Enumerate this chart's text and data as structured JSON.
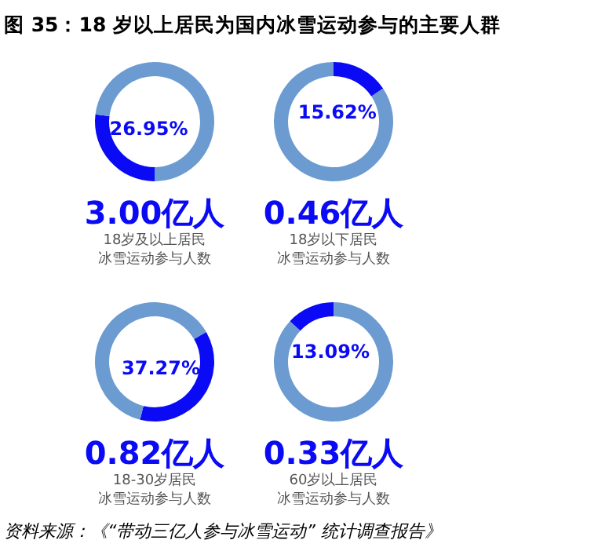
{
  "chart_data": [
    {
      "type": "donut",
      "title": "图 35：18 岁以上居民为国内冰雪运动参与的主要人群",
      "categories": [
        null,
        null
      ],
      "values": [
        26.95,
        73.05
      ],
      "colors": [
        "#0a0af5",
        "#6b9bd1"
      ],
      "value_labels": [
        "26.95%",
        null
      ],
      "subtitle": "3.00亿人",
      "annotations": [
        "18岁及以上居民",
        "冰雪运动参与人数"
      ]
    },
    {
      "type": "donut",
      "categories": [
        null,
        null
      ],
      "values": [
        15.62,
        84.38
      ],
      "colors": [
        "#0a0af5",
        "#6b9bd1"
      ],
      "value_labels": [
        "15.62%",
        null
      ],
      "subtitle": "0.46亿人",
      "annotations": [
        "18岁以下居民",
        "冰雪运动参与人数"
      ]
    },
    {
      "type": "donut",
      "categories": [
        null,
        null
      ],
      "values": [
        37.27,
        62.73
      ],
      "colors": [
        "#0a0af5",
        "#6b9bd1"
      ],
      "value_labels": [
        "37.27%",
        null
      ],
      "subtitle": "0.82亿人",
      "annotations": [
        "18-30岁居民",
        "冰雪运动参与人数"
      ]
    },
    {
      "type": "donut",
      "categories": [
        null,
        null
      ],
      "values": [
        13.09,
        86.91
      ],
      "colors": [
        "#0a0af5",
        "#6b9bd1"
      ],
      "value_labels": [
        "13.09%",
        null
      ],
      "subtitle": "0.33亿人",
      "annotations": [
        "60岁以上居民",
        "冰雪运动参与人数",
        "资料来源：《“带动三亿人参与冰雪运动” 统计调查报告》"
      ]
    }
  ]
}
